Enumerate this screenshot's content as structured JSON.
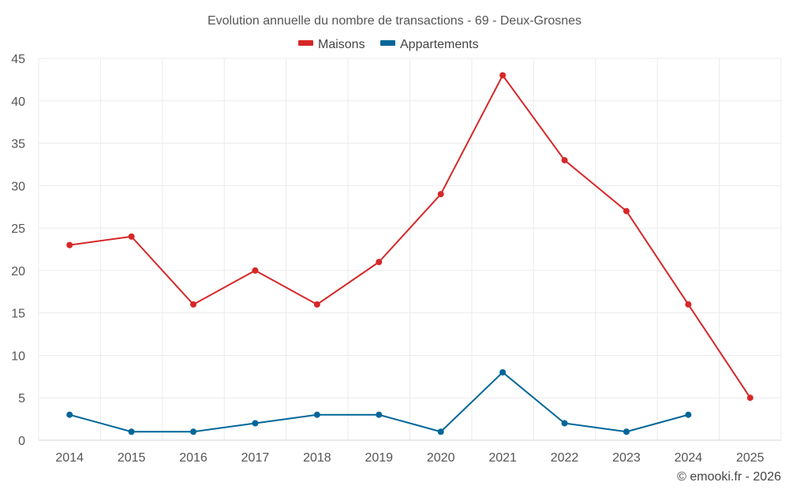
{
  "chart_data": {
    "type": "line",
    "title": "Evolution annuelle du nombre de transactions - 69 - Deux-Grosnes",
    "xlabel": "",
    "ylabel": "",
    "categories": [
      "2014",
      "2015",
      "2016",
      "2017",
      "2018",
      "2019",
      "2020",
      "2021",
      "2022",
      "2023",
      "2024",
      "2025"
    ],
    "ylim": [
      0,
      45
    ],
    "yticks": [
      0,
      5,
      10,
      15,
      20,
      25,
      30,
      35,
      40,
      45
    ],
    "grid": true,
    "legend_position": "top-center",
    "series": [
      {
        "name": "Maisons",
        "color": "#d62728",
        "values": [
          23,
          24,
          16,
          20,
          16,
          21,
          29,
          43,
          33,
          27,
          16,
          5
        ]
      },
      {
        "name": "Appartements",
        "color": "#006699",
        "values": [
          3,
          1,
          1,
          2,
          3,
          3,
          1,
          8,
          2,
          1,
          3,
          null
        ]
      }
    ]
  },
  "credit": "© emooki.fr - 2026"
}
